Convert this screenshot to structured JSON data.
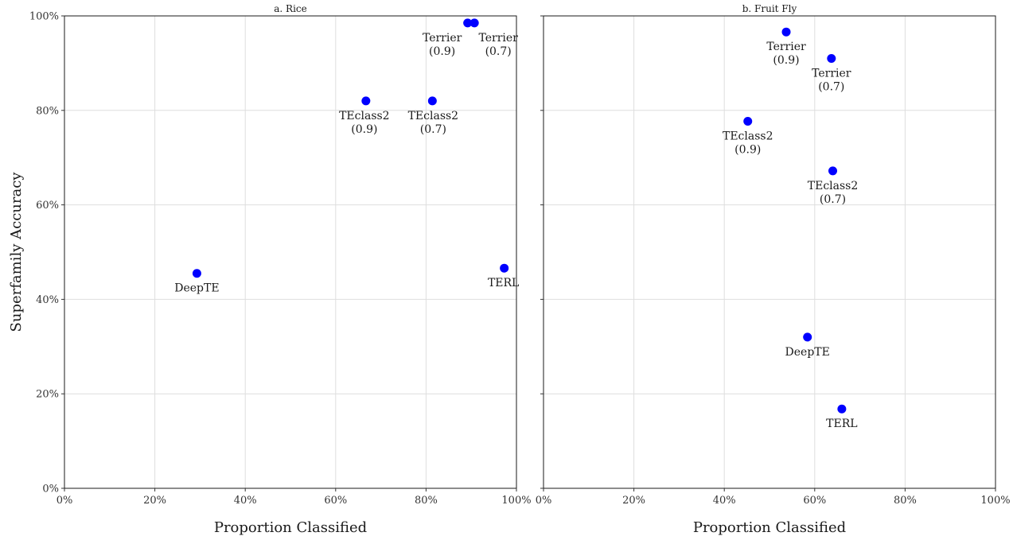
{
  "figure": {
    "ylabel": "Superfamily Accuracy",
    "xlabel": "Proportion Classified",
    "point_color": "#0000ff"
  },
  "chart_data": [
    {
      "type": "scatter",
      "title": "a. Rice",
      "xlabel": "Proportion Classified",
      "ylabel": "Superfamily Accuracy",
      "xlim": [
        0,
        1
      ],
      "ylim": [
        0,
        1
      ],
      "x_ticks": [
        "0%",
        "20%",
        "40%",
        "60%",
        "80%",
        "100%"
      ],
      "y_ticks": [
        "0%",
        "20%",
        "40%",
        "60%",
        "80%",
        "100%"
      ],
      "grid": true,
      "points": [
        {
          "label": [
            "DeepTE"
          ],
          "x": 0.293,
          "y": 0.455
        },
        {
          "label": [
            "TEclass2",
            "(0.9)"
          ],
          "x": 0.667,
          "y": 0.82
        },
        {
          "label": [
            "TEclass2",
            "(0.7)"
          ],
          "x": 0.814,
          "y": 0.82
        },
        {
          "label": [
            "Terrier",
            "(0.9)"
          ],
          "x": 0.892,
          "y": 0.985
        },
        {
          "label": [
            "Terrier",
            "(0.7)"
          ],
          "x": 0.907,
          "y": 0.985
        },
        {
          "label": [
            "TERL"
          ],
          "x": 0.973,
          "y": 0.466
        }
      ]
    },
    {
      "type": "scatter",
      "title": "b. Fruit Fly",
      "xlabel": "Proportion Classified",
      "ylabel": "Superfamily Accuracy",
      "xlim": [
        0,
        1
      ],
      "ylim": [
        0,
        1
      ],
      "x_ticks": [
        "0%",
        "20%",
        "40%",
        "60%",
        "80%",
        "100%"
      ],
      "y_ticks": [
        "0%",
        "20%",
        "40%",
        "60%",
        "80%",
        "100%"
      ],
      "grid": true,
      "points": [
        {
          "label": [
            "Terrier",
            "(0.9)"
          ],
          "x": 0.537,
          "y": 0.966
        },
        {
          "label": [
            "Terrier",
            "(0.7)"
          ],
          "x": 0.637,
          "y": 0.91
        },
        {
          "label": [
            "TEclass2",
            "(0.9)"
          ],
          "x": 0.452,
          "y": 0.777
        },
        {
          "label": [
            "TEclass2",
            "(0.7)"
          ],
          "x": 0.64,
          "y": 0.672
        },
        {
          "label": [
            "DeepTE"
          ],
          "x": 0.584,
          "y": 0.32
        },
        {
          "label": [
            "TERL"
          ],
          "x": 0.66,
          "y": 0.168
        }
      ]
    }
  ]
}
